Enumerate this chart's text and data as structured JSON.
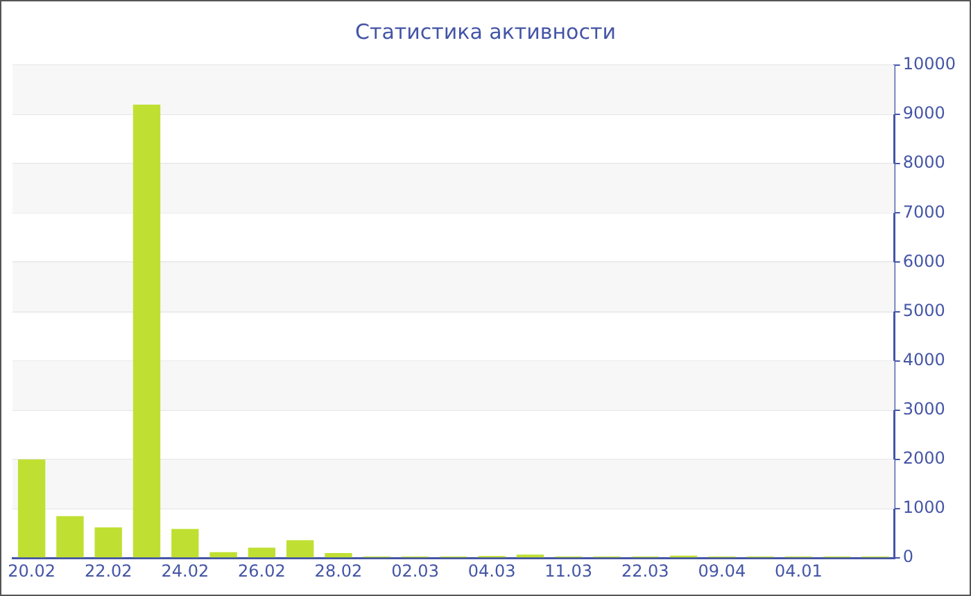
{
  "chart_data": {
    "type": "bar",
    "title": "Статистика активности",
    "categories": [
      "20.02",
      null,
      "22.02",
      null,
      "24.02",
      null,
      "26.02",
      null,
      "28.02",
      null,
      "02.03",
      null,
      "04.03",
      null,
      "11.03",
      null,
      "22.03",
      null,
      "09.04",
      null,
      "04.01",
      null,
      null
    ],
    "values": [
      2000,
      850,
      620,
      9200,
      590,
      120,
      210,
      360,
      100,
      30,
      30,
      30,
      40,
      70,
      30,
      30,
      30,
      50,
      30,
      30,
      30,
      30,
      30
    ],
    "color": "#bfe032",
    "ylim": [
      0,
      10000
    ],
    "yticks": [
      0,
      1000,
      2000,
      3000,
      4000,
      5000,
      6000,
      7000,
      8000,
      9000,
      10000
    ],
    "grid": "y",
    "legend": false
  }
}
